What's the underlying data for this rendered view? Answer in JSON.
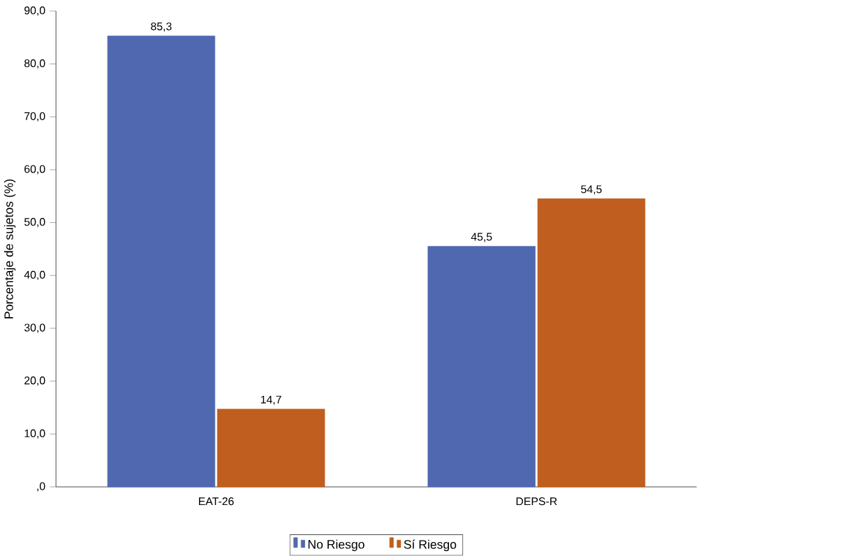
{
  "chart_data": {
    "type": "bar",
    "ylabel": "Porcentaje de sujetos (%)",
    "categories": [
      "EAT-26",
      "DEPS-R"
    ],
    "series": [
      {
        "name": "No Riesgo",
        "color": "#5068b0",
        "values": [
          85.3,
          45.5
        ],
        "value_labels": [
          "85,3",
          "45,5"
        ]
      },
      {
        "name": "Sí Riesgo",
        "color": "#bf5e1e",
        "values": [
          14.7,
          54.5
        ],
        "value_labels": [
          "14,7",
          "54,5"
        ]
      }
    ],
    "ylim": [
      0,
      90
    ],
    "yticks": [
      {
        "value": 0,
        "label": ",0"
      },
      {
        "value": 10,
        "label": "10,0"
      },
      {
        "value": 20,
        "label": "20,0"
      },
      {
        "value": 30,
        "label": "30,0"
      },
      {
        "value": 40,
        "label": "40,0"
      },
      {
        "value": 50,
        "label": "50,0"
      },
      {
        "value": 60,
        "label": "60,0"
      },
      {
        "value": 70,
        "label": "70,0"
      },
      {
        "value": 80,
        "label": "80,0"
      },
      {
        "value": 90,
        "label": "90,0"
      }
    ],
    "grid": false,
    "legend": "bottom"
  }
}
